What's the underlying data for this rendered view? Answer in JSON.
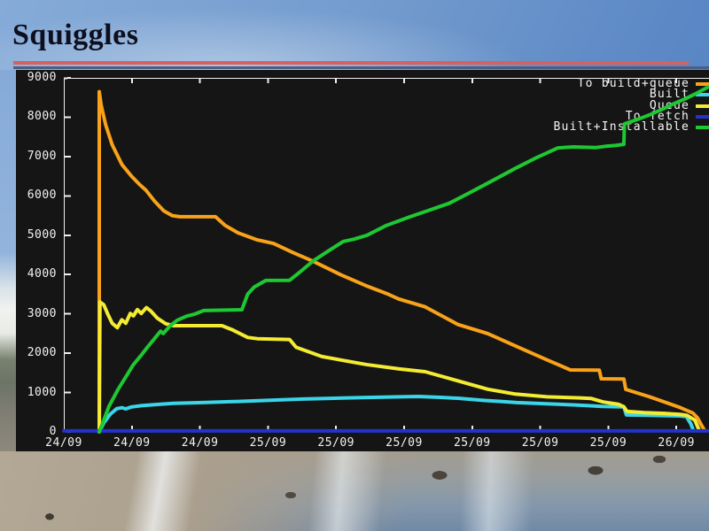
{
  "slide": {
    "title": "Squiggles"
  },
  "colors": {
    "rule_red": "#d8605e",
    "rule_blue": "#4a5f85",
    "panel_bg": "#151515",
    "axis": "#f2f2f2"
  },
  "chart_data": {
    "type": "line",
    "title": "",
    "xlabel": "",
    "ylabel": "",
    "grid": false,
    "legend_position": "top-right",
    "ylim": [
      0,
      9000
    ],
    "yticks": [
      "9000",
      "8000",
      "7000",
      "6000",
      "5000",
      "4000",
      "3000",
      "2000",
      "1000",
      "0"
    ],
    "xticks": [
      "24/09",
      "24/09",
      "24/09",
      "25/09",
      "25/09",
      "25/09",
      "25/09",
      "25/09",
      "25/09",
      "26/09"
    ],
    "x_axis_note": "x stored as fraction 0-1 of plot width (time axis 24/09 to 26/09, ticks every 4h)",
    "series": [
      {
        "name": "To build+queue",
        "color": "#f9a21a",
        "points": [
          [
            0.055,
            0
          ],
          [
            0.055,
            8650
          ],
          [
            0.058,
            8300
          ],
          [
            0.065,
            7800
          ],
          [
            0.075,
            7300
          ],
          [
            0.09,
            6800
          ],
          [
            0.105,
            6500
          ],
          [
            0.118,
            6280
          ],
          [
            0.127,
            6150
          ],
          [
            0.14,
            5880
          ],
          [
            0.155,
            5620
          ],
          [
            0.168,
            5500
          ],
          [
            0.18,
            5470
          ],
          [
            0.235,
            5470
          ],
          [
            0.25,
            5250
          ],
          [
            0.27,
            5060
          ],
          [
            0.3,
            4880
          ],
          [
            0.325,
            4790
          ],
          [
            0.355,
            4560
          ],
          [
            0.386,
            4340
          ],
          [
            0.43,
            3990
          ],
          [
            0.468,
            3720
          ],
          [
            0.5,
            3520
          ],
          [
            0.519,
            3380
          ],
          [
            0.56,
            3180
          ],
          [
            0.611,
            2730
          ],
          [
            0.657,
            2500
          ],
          [
            0.702,
            2170
          ],
          [
            0.749,
            1830
          ],
          [
            0.776,
            1640
          ],
          [
            0.785,
            1575
          ],
          [
            0.83,
            1570
          ],
          [
            0.833,
            1350
          ],
          [
            0.868,
            1345
          ],
          [
            0.871,
            1080
          ],
          [
            0.908,
            890
          ],
          [
            0.955,
            620
          ],
          [
            0.975,
            480
          ],
          [
            0.982,
            360
          ],
          [
            0.988,
            180
          ],
          [
            0.993,
            40
          ]
        ]
      },
      {
        "name": "Built",
        "color": "#3ad5e8",
        "points": [
          [
            0.055,
            0
          ],
          [
            0.062,
            230
          ],
          [
            0.072,
            450
          ],
          [
            0.082,
            590
          ],
          [
            0.09,
            615
          ],
          [
            0.096,
            585
          ],
          [
            0.105,
            635
          ],
          [
            0.12,
            665
          ],
          [
            0.14,
            690
          ],
          [
            0.17,
            725
          ],
          [
            0.22,
            750
          ],
          [
            0.27,
            775
          ],
          [
            0.32,
            805
          ],
          [
            0.37,
            835
          ],
          [
            0.42,
            855
          ],
          [
            0.47,
            875
          ],
          [
            0.52,
            890
          ],
          [
            0.55,
            900
          ],
          [
            0.58,
            880
          ],
          [
            0.611,
            855
          ],
          [
            0.65,
            800
          ],
          [
            0.68,
            770
          ],
          [
            0.702,
            745
          ],
          [
            0.74,
            720
          ],
          [
            0.77,
            700
          ],
          [
            0.794,
            685
          ],
          [
            0.81,
            670
          ],
          [
            0.835,
            645
          ],
          [
            0.868,
            635
          ],
          [
            0.872,
            430
          ],
          [
            0.9,
            425
          ],
          [
            0.93,
            415
          ],
          [
            0.955,
            405
          ],
          [
            0.965,
            390
          ],
          [
            0.972,
            200
          ],
          [
            0.976,
            30
          ]
        ]
      },
      {
        "name": "Queue",
        "color": "#f4ec33",
        "points": [
          [
            0.055,
            0
          ],
          [
            0.056,
            3300
          ],
          [
            0.062,
            3230
          ],
          [
            0.068,
            3000
          ],
          [
            0.075,
            2760
          ],
          [
            0.083,
            2650
          ],
          [
            0.09,
            2850
          ],
          [
            0.096,
            2760
          ],
          [
            0.103,
            3010
          ],
          [
            0.108,
            2950
          ],
          [
            0.114,
            3110
          ],
          [
            0.12,
            3010
          ],
          [
            0.128,
            3160
          ],
          [
            0.135,
            3070
          ],
          [
            0.145,
            2890
          ],
          [
            0.158,
            2750
          ],
          [
            0.17,
            2700
          ],
          [
            0.245,
            2700
          ],
          [
            0.262,
            2590
          ],
          [
            0.285,
            2400
          ],
          [
            0.3,
            2370
          ],
          [
            0.35,
            2350
          ],
          [
            0.36,
            2150
          ],
          [
            0.4,
            1915
          ],
          [
            0.468,
            1715
          ],
          [
            0.52,
            1600
          ],
          [
            0.56,
            1530
          ],
          [
            0.61,
            1300
          ],
          [
            0.657,
            1085
          ],
          [
            0.7,
            960
          ],
          [
            0.749,
            890
          ],
          [
            0.8,
            865
          ],
          [
            0.817,
            850
          ],
          [
            0.836,
            760
          ],
          [
            0.86,
            700
          ],
          [
            0.868,
            640
          ],
          [
            0.873,
            520
          ],
          [
            0.9,
            490
          ],
          [
            0.931,
            470
          ],
          [
            0.957,
            440
          ],
          [
            0.966,
            420
          ],
          [
            0.978,
            300
          ],
          [
            0.985,
            30
          ]
        ]
      },
      {
        "name": "To fetch",
        "color": "#2433cc",
        "points": [
          [
            0,
            25
          ],
          [
            1,
            25
          ]
        ]
      },
      {
        "name": "Built+Installable",
        "color": "#1ec832",
        "points": [
          [
            0.055,
            0
          ],
          [
            0.062,
            300
          ],
          [
            0.07,
            650
          ],
          [
            0.084,
            1080
          ],
          [
            0.1,
            1500
          ],
          [
            0.107,
            1690
          ],
          [
            0.12,
            1950
          ],
          [
            0.13,
            2160
          ],
          [
            0.142,
            2400
          ],
          [
            0.15,
            2560
          ],
          [
            0.154,
            2500
          ],
          [
            0.165,
            2700
          ],
          [
            0.176,
            2840
          ],
          [
            0.19,
            2940
          ],
          [
            0.203,
            2995
          ],
          [
            0.217,
            3085
          ],
          [
            0.276,
            3105
          ],
          [
            0.285,
            3500
          ],
          [
            0.295,
            3680
          ],
          [
            0.313,
            3850
          ],
          [
            0.35,
            3855
          ],
          [
            0.365,
            4050
          ],
          [
            0.386,
            4340
          ],
          [
            0.41,
            4600
          ],
          [
            0.433,
            4840
          ],
          [
            0.45,
            4900
          ],
          [
            0.47,
            5000
          ],
          [
            0.5,
            5250
          ],
          [
            0.537,
            5470
          ],
          [
            0.56,
            5600
          ],
          [
            0.597,
            5810
          ],
          [
            0.629,
            6080
          ],
          [
            0.66,
            6350
          ],
          [
            0.7,
            6700
          ],
          [
            0.73,
            6950
          ],
          [
            0.766,
            7220
          ],
          [
            0.79,
            7245
          ],
          [
            0.825,
            7230
          ],
          [
            0.84,
            7260
          ],
          [
            0.855,
            7280
          ],
          [
            0.868,
            7310
          ],
          [
            0.869,
            7830
          ],
          [
            0.89,
            7950
          ],
          [
            0.908,
            8060
          ],
          [
            0.93,
            8220
          ],
          [
            0.945,
            8340
          ],
          [
            0.965,
            8480
          ],
          [
            0.982,
            8620
          ],
          [
            1,
            8780
          ]
        ]
      }
    ]
  }
}
